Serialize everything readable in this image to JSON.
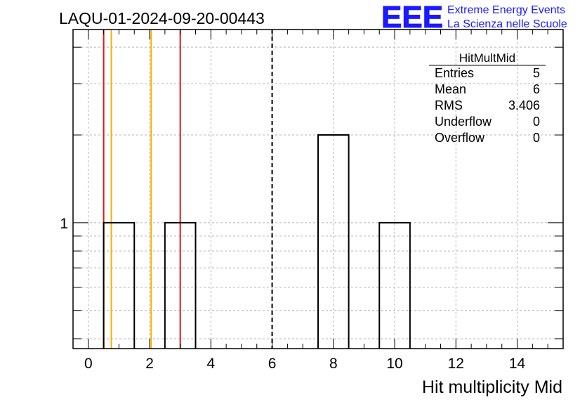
{
  "chart_data": {
    "type": "bar",
    "title": "LAQU-01-2024-09-20-00443",
    "xlabel": "Hit multiplicity Mid",
    "ylabel": "",
    "y_scale": "log",
    "xlim": [
      -0.5,
      15.5
    ],
    "ylim": [
      0.37,
      4.6
    ],
    "x_ticks": [
      0,
      2,
      4,
      6,
      8,
      10,
      12,
      14
    ],
    "y_tick_labels": [
      "1"
    ],
    "bins": [
      {
        "low": 0.5,
        "high": 1.5,
        "value": 1
      },
      {
        "low": 2.5,
        "high": 3.5,
        "value": 1
      },
      {
        "low": 7.5,
        "high": 8.5,
        "value": 2
      },
      {
        "low": 9.5,
        "high": 10.5,
        "value": 1
      }
    ],
    "vertical_lines": [
      {
        "x": 0.5,
        "color": "#e01818",
        "style": "solid"
      },
      {
        "x": 0.75,
        "color": "#f2b200",
        "style": "solid"
      },
      {
        "x": 2.05,
        "color": "#f2b200",
        "style": "solid"
      },
      {
        "x": 3.0,
        "color": "#e01818",
        "style": "solid"
      },
      {
        "x": 6.0,
        "color": "#000000",
        "style": "dashed"
      }
    ],
    "grid": true,
    "stats_box": {
      "name": "HitMultMid",
      "rows": [
        {
          "label": "Entries",
          "value": "5"
        },
        {
          "label": "Mean",
          "value": "6"
        },
        {
          "label": "RMS",
          "value": "3.406"
        },
        {
          "label": "Underflow",
          "value": "0"
        },
        {
          "label": "Overflow",
          "value": "0"
        }
      ]
    }
  },
  "logo": {
    "mark": "EEE",
    "line1": "Extreme Energy Events",
    "line2": "La Scienza nelle Scuole",
    "color": "#1a1aff"
  }
}
